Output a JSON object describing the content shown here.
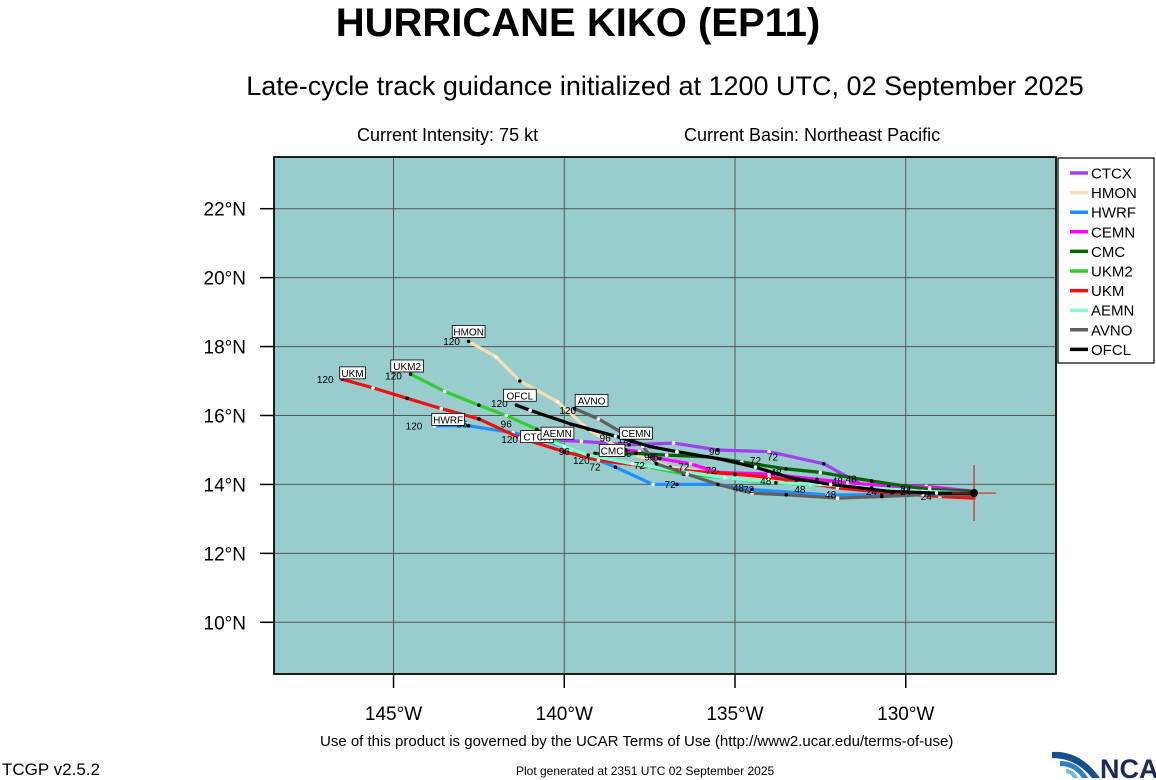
{
  "header": {
    "title": "HURRICANE KIKO (EP11)",
    "subtitle": "Late-cycle track guidance initialized at 1200 UTC, 02 September 2025",
    "intensity": "Current Intensity: 75 kt",
    "basin": "Current Basin: Northeast Pacific"
  },
  "footer": {
    "terms": "Use of this product is governed by the UCAR Terms of Use (http://www2.ucar.edu/terms-of-use)",
    "version": "TCGP v2.5.2",
    "generated": "Plot generated at 2351 UTC   02 September 2025",
    "logo_text": "NCAR"
  },
  "colors": {
    "ocean": "#99cccc",
    "grid": "#555555"
  },
  "chart_data": {
    "type": "scatter",
    "title": "HURRICANE KIKO (EP11)",
    "xlim": [
      -148.5,
      -125.6
    ],
    "ylim": [
      8.5,
      23.5
    ],
    "x_ticks": [
      -145,
      -140,
      -135,
      -130
    ],
    "x_tick_labels": [
      "145°W",
      "140°W",
      "135°W",
      "130°W"
    ],
    "y_ticks": [
      10,
      12,
      14,
      16,
      18,
      20,
      22
    ],
    "y_tick_labels": [
      "10°N",
      "12°N",
      "14°N",
      "16°N",
      "18°N",
      "20°N",
      "22°N"
    ],
    "grid": true,
    "legend_position": "top-right",
    "current_position": {
      "lon": -128.0,
      "lat": 13.75
    },
    "series": [
      {
        "name": "CTCX",
        "color": "#a040f0",
        "points": [
          [
            -128.0,
            13.8
          ],
          [
            -129.4,
            13.95
          ],
          [
            -130.0,
            13.95
          ],
          [
            -131.3,
            14.0
          ],
          [
            -132.4,
            14.6
          ],
          [
            -134.0,
            14.95
          ],
          [
            -135.5,
            15.0
          ],
          [
            -136.8,
            15.2
          ],
          [
            -138.1,
            15.15
          ],
          [
            -139.5,
            15.25
          ],
          [
            -140.5,
            15.3
          ]
        ],
        "labels": [
          {
            "t": "120",
            "lon": -141.6,
            "lat": 15.2
          }
        ],
        "box": {
          "text": "CTCX",
          "lon": -140.8,
          "lat": 15.3
        }
      },
      {
        "name": "HMON",
        "color": "#f5deb3",
        "points": [
          [
            -128.0,
            13.75
          ],
          [
            -129.6,
            13.8
          ],
          [
            -130.7,
            13.85
          ],
          [
            -132.0,
            14.0
          ],
          [
            -133.5,
            14.1
          ],
          [
            -135.1,
            14.3
          ],
          [
            -136.9,
            14.5
          ],
          [
            -138.3,
            15.0
          ],
          [
            -139.3,
            15.6
          ],
          [
            -140.2,
            16.4
          ],
          [
            -141.3,
            17.0
          ],
          [
            -142.0,
            17.7
          ],
          [
            -142.8,
            18.15
          ]
        ],
        "labels": [
          {
            "t": "120",
            "lon": -143.3,
            "lat": 18.05
          }
        ],
        "box": {
          "text": "HMON",
          "lon": -142.8,
          "lat": 18.35
        }
      },
      {
        "name": "HWRF",
        "color": "#1e90ff",
        "points": [
          [
            -128.0,
            13.7
          ],
          [
            -129.5,
            13.75
          ],
          [
            -130.7,
            13.7
          ],
          [
            -132.3,
            13.7
          ],
          [
            -134.5,
            13.85
          ],
          [
            -135.5,
            14.0
          ],
          [
            -136.7,
            14.0
          ],
          [
            -137.4,
            14.0
          ],
          [
            -138.5,
            14.5
          ],
          [
            -139.5,
            14.9
          ],
          [
            -140.6,
            15.3
          ],
          [
            -141.5,
            15.5
          ],
          [
            -142.8,
            15.7
          ],
          [
            -143.8,
            15.7
          ]
        ],
        "labels": [
          {
            "t": "120",
            "lon": -144.4,
            "lat": 15.6
          },
          {
            "t": "96",
            "lon": -143.0,
            "lat": 15.65
          },
          {
            "t": "72",
            "lon": -136.9,
            "lat": 13.9
          },
          {
            "t": "48",
            "lon": -134.9,
            "lat": 13.8
          },
          {
            "t": "24",
            "lon": -130.0,
            "lat": 13.7
          }
        ],
        "box": {
          "text": "HWRF",
          "lon": -143.4,
          "lat": 15.8
        }
      },
      {
        "name": "CEMN",
        "color": "#ff00ff",
        "points": [
          [
            -128.0,
            13.8
          ],
          [
            -129.3,
            13.9
          ],
          [
            -130.5,
            13.95
          ],
          [
            -131.7,
            14.05
          ],
          [
            -132.6,
            14.15
          ],
          [
            -134.0,
            14.3
          ],
          [
            -135.5,
            14.35
          ],
          [
            -136.3,
            14.6
          ],
          [
            -137.2,
            14.75
          ],
          [
            -137.8,
            14.95
          ],
          [
            -138.2,
            15.0
          ]
        ],
        "labels": [
          {
            "t": "120",
            "lon": -138.2,
            "lat": 15.2
          }
        ],
        "box": {
          "text": "CEMN",
          "lon": -137.9,
          "lat": 15.4
        }
      },
      {
        "name": "CMC",
        "color": "#006400",
        "points": [
          [
            -128.0,
            13.8
          ],
          [
            -129.3,
            13.85
          ],
          [
            -131.0,
            14.1
          ],
          [
            -132.5,
            14.35
          ],
          [
            -133.5,
            14.45
          ],
          [
            -134.8,
            14.65
          ],
          [
            -135.8,
            14.8
          ],
          [
            -137.0,
            14.85
          ],
          [
            -137.9,
            14.9
          ],
          [
            -138.7,
            14.85
          ],
          [
            -139.1,
            14.9
          ]
        ],
        "labels": [
          {
            "t": "120",
            "lon": -139.5,
            "lat": 14.6
          },
          {
            "t": "96",
            "lon": -137.5,
            "lat": 14.7
          },
          {
            "t": "72",
            "lon": -134.4,
            "lat": 14.6
          },
          {
            "t": "48",
            "lon": -132.0,
            "lat": 14.0
          }
        ],
        "box": {
          "text": "CMC",
          "lon": -138.6,
          "lat": 14.9
        }
      },
      {
        "name": "UKM2",
        "color": "#32cd32",
        "points": [
          [
            -128.0,
            13.7
          ],
          [
            -130.0,
            13.8
          ],
          [
            -131.5,
            13.9
          ],
          [
            -132.8,
            14.0
          ],
          [
            -134.0,
            14.05
          ],
          [
            -135.3,
            14.2
          ],
          [
            -136.5,
            14.3
          ],
          [
            -137.5,
            14.5
          ],
          [
            -138.7,
            14.7
          ],
          [
            -139.8,
            15.0
          ],
          [
            -140.8,
            15.6
          ],
          [
            -141.7,
            16.0
          ],
          [
            -142.5,
            16.3
          ],
          [
            -143.5,
            16.7
          ],
          [
            -144.5,
            17.2
          ]
        ],
        "labels": [
          {
            "t": "120",
            "lon": -145.0,
            "lat": 17.05
          }
        ],
        "box": {
          "text": "UKM2",
          "lon": -144.6,
          "lat": 17.35
        }
      },
      {
        "name": "UKM",
        "color": "#ee1111",
        "points": [
          [
            -128.0,
            13.6
          ],
          [
            -129.0,
            13.65
          ],
          [
            -130.4,
            13.75
          ],
          [
            -132.0,
            13.9
          ],
          [
            -133.2,
            14.1
          ],
          [
            -134.0,
            14.2
          ],
          [
            -135.0,
            14.3
          ],
          [
            -136.5,
            14.4
          ],
          [
            -137.8,
            14.55
          ],
          [
            -139.0,
            14.7
          ],
          [
            -140.0,
            14.95
          ],
          [
            -141.3,
            15.35
          ],
          [
            -142.5,
            15.9
          ],
          [
            -143.6,
            16.2
          ],
          [
            -144.6,
            16.5
          ],
          [
            -145.6,
            16.8
          ],
          [
            -146.5,
            17.05
          ]
        ],
        "labels": [
          {
            "t": "120",
            "lon": -147.0,
            "lat": 16.95
          },
          {
            "t": "72",
            "lon": -137.8,
            "lat": 14.45
          }
        ],
        "box": {
          "text": "UKM",
          "lon": -146.2,
          "lat": 17.15
        }
      },
      {
        "name": "AEMN",
        "color": "#7fffd4",
        "points": [
          [
            -128.0,
            13.75
          ],
          [
            -129.5,
            13.8
          ],
          [
            -131.0,
            13.9
          ],
          [
            -132.5,
            14.0
          ],
          [
            -133.8,
            14.05
          ],
          [
            -135.3,
            14.2
          ],
          [
            -136.7,
            14.4
          ],
          [
            -138.0,
            14.6
          ],
          [
            -139.3,
            14.85
          ],
          [
            -140.0,
            15.1
          ],
          [
            -140.5,
            15.3
          ]
        ],
        "labels": [
          {
            "t": "120",
            "lon": -140.7,
            "lat": 15.2
          }
        ],
        "box": {
          "text": "AEMN",
          "lon": -140.2,
          "lat": 15.4
        }
      },
      {
        "name": "AVNO",
        "color": "#606060",
        "points": [
          [
            -128.0,
            13.7
          ],
          [
            -129.5,
            13.7
          ],
          [
            -130.7,
            13.65
          ],
          [
            -132.0,
            13.6
          ],
          [
            -133.5,
            13.7
          ],
          [
            -134.5,
            13.75
          ],
          [
            -135.5,
            14.0
          ],
          [
            -136.4,
            14.3
          ],
          [
            -137.3,
            14.6
          ],
          [
            -137.7,
            15.1
          ],
          [
            -138.3,
            15.5
          ],
          [
            -139.0,
            15.9
          ],
          [
            -139.7,
            16.2
          ]
        ],
        "labels": [
          {
            "t": "120",
            "lon": -139.9,
            "lat": 16.05
          }
        ],
        "box": {
          "text": "AVNO",
          "lon": -139.2,
          "lat": 16.35
        }
      },
      {
        "name": "OFCL",
        "color": "#000000",
        "points": [
          [
            -128.0,
            13.75
          ],
          [
            -129.1,
            13.75
          ],
          [
            -130.5,
            13.8
          ],
          [
            -132.2,
            14.0
          ],
          [
            -133.4,
            14.2
          ],
          [
            -134.4,
            14.5
          ],
          [
            -135.5,
            14.75
          ],
          [
            -136.7,
            14.95
          ],
          [
            -137.5,
            15.1
          ],
          [
            -138.5,
            15.4
          ],
          [
            -139.8,
            15.75
          ],
          [
            -141.0,
            16.15
          ],
          [
            -141.4,
            16.3
          ]
        ],
        "labels": [
          {
            "t": "120",
            "lon": -141.9,
            "lat": 16.25
          },
          {
            "t": "96",
            "lon": -141.7,
            "lat": 15.65
          },
          {
            "t": "96",
            "lon": -140.2,
            "lat": 15.4
          },
          {
            "t": "96",
            "lon": -138.8,
            "lat": 15.25
          },
          {
            "t": "96",
            "lon": -138.2,
            "lat": 14.8
          },
          {
            "t": "96",
            "lon": -137.4,
            "lat": 14.7
          },
          {
            "t": "96",
            "lon": -135.6,
            "lat": 14.85
          },
          {
            "t": "96",
            "lon": -140.0,
            "lat": 14.85
          },
          {
            "t": "72",
            "lon": -139.1,
            "lat": 14.4
          },
          {
            "t": "72",
            "lon": -136.5,
            "lat": 14.4
          },
          {
            "t": "72",
            "lon": -135.7,
            "lat": 14.3
          },
          {
            "t": "72",
            "lon": -134.6,
            "lat": 13.75
          },
          {
            "t": "72",
            "lon": -133.9,
            "lat": 14.7
          },
          {
            "t": "48",
            "lon": -134.1,
            "lat": 14.0
          },
          {
            "t": "48",
            "lon": -133.1,
            "lat": 13.75
          },
          {
            "t": "48",
            "lon": -132.2,
            "lat": 13.6
          },
          {
            "t": "48",
            "lon": -131.6,
            "lat": 14.05
          },
          {
            "t": "48",
            "lon": -133.8,
            "lat": 14.25
          },
          {
            "t": "24",
            "lon": -131.0,
            "lat": 13.7
          },
          {
            "t": "24",
            "lon": -129.4,
            "lat": 13.55
          },
          {
            "t": "24",
            "lon": -130.0,
            "lat": 13.75
          }
        ],
        "box": {
          "text": "OFCL",
          "lon": -141.3,
          "lat": 16.5
        }
      }
    ]
  }
}
